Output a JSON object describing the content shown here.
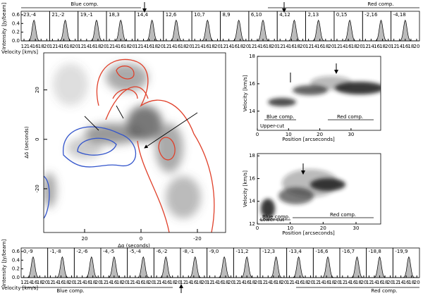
{
  "top_strip": {
    "y_label": "Intensity [Jy/beam]",
    "x_label": "Velocity [km/s]",
    "xlim": [
      11,
      21
    ],
    "xticks": [
      12,
      14,
      16,
      18,
      20
    ],
    "ylim": [
      0,
      0.68
    ],
    "yticks": [
      {
        "value": 0,
        "label": "0.0"
      },
      {
        "value": 0.2,
        "label": "0.2"
      },
      {
        "value": 0.4,
        "label": "0.4"
      },
      {
        "value": 0.6,
        "label": "0.6"
      }
    ],
    "panels": [
      "23,-4",
      "21,-2",
      "19,-1",
      "18,3",
      "14,4",
      "12,6",
      "10,7",
      "8,9",
      "6,10",
      "4,12",
      "2,13",
      "0,15",
      "-2,16",
      "-4,18"
    ],
    "annotations": [
      "Blue comp.",
      "Red comp."
    ]
  },
  "bottom_strip": {
    "y_label": "Intensity [Jy/beam]",
    "x_label": "Velocity [km/s]",
    "xlim": [
      11,
      21
    ],
    "xticks": [
      12,
      14,
      16,
      18,
      20
    ],
    "ylim": [
      0,
      0.68
    ],
    "yticks": [
      {
        "value": 0,
        "label": "0.0"
      },
      {
        "value": 0.2,
        "label": "0.2"
      },
      {
        "value": 0.4,
        "label": "0.4"
      },
      {
        "value": 0.6,
        "label": "0.6"
      }
    ],
    "panels": [
      "0,-9",
      "-1,-8",
      "-2,-6",
      "-4,-5",
      "-5,-4",
      "-6,-2",
      "-8,-1",
      "-9,0",
      "-11,2",
      "-12,3",
      "-13,4",
      "-16,6",
      "-16,7",
      "-18,8",
      "-19,9"
    ],
    "annotations": [
      "Blue comp.",
      "Red comp."
    ]
  },
  "map": {
    "x_label": "Δα (seconds)",
    "y_label": "Δδ (seconds)",
    "xlim": [
      34.5,
      -30
    ],
    "ylim": [
      -37.7,
      35
    ],
    "xticks": [
      20,
      0,
      -20
    ],
    "yticks": [
      20,
      0,
      -20
    ]
  },
  "upper_cut": {
    "label": "Upper-cut",
    "y_label": "Velocity [km/s]",
    "x_label": "Position [arcseconds]",
    "xlim": [
      0,
      39.5
    ],
    "ylim": [
      12.6,
      18
    ],
    "xticks": [
      0,
      10,
      20,
      30
    ],
    "yticks": [
      14,
      16,
      18
    ],
    "annotations": [
      "Blue comp.",
      "Red comp."
    ]
  },
  "lower_cut": {
    "label": "Lower-cut",
    "y_label": "Velocity [km/s]",
    "x_label": "Position [arcseconds]",
    "xlim": [
      0,
      37.5
    ],
    "ylim": [
      12,
      18.2
    ],
    "xticks": [
      0,
      10,
      20,
      30
    ],
    "yticks": [
      12,
      14,
      16,
      18
    ],
    "annotations": [
      "Blue comp.",
      "Red comp."
    ]
  }
}
